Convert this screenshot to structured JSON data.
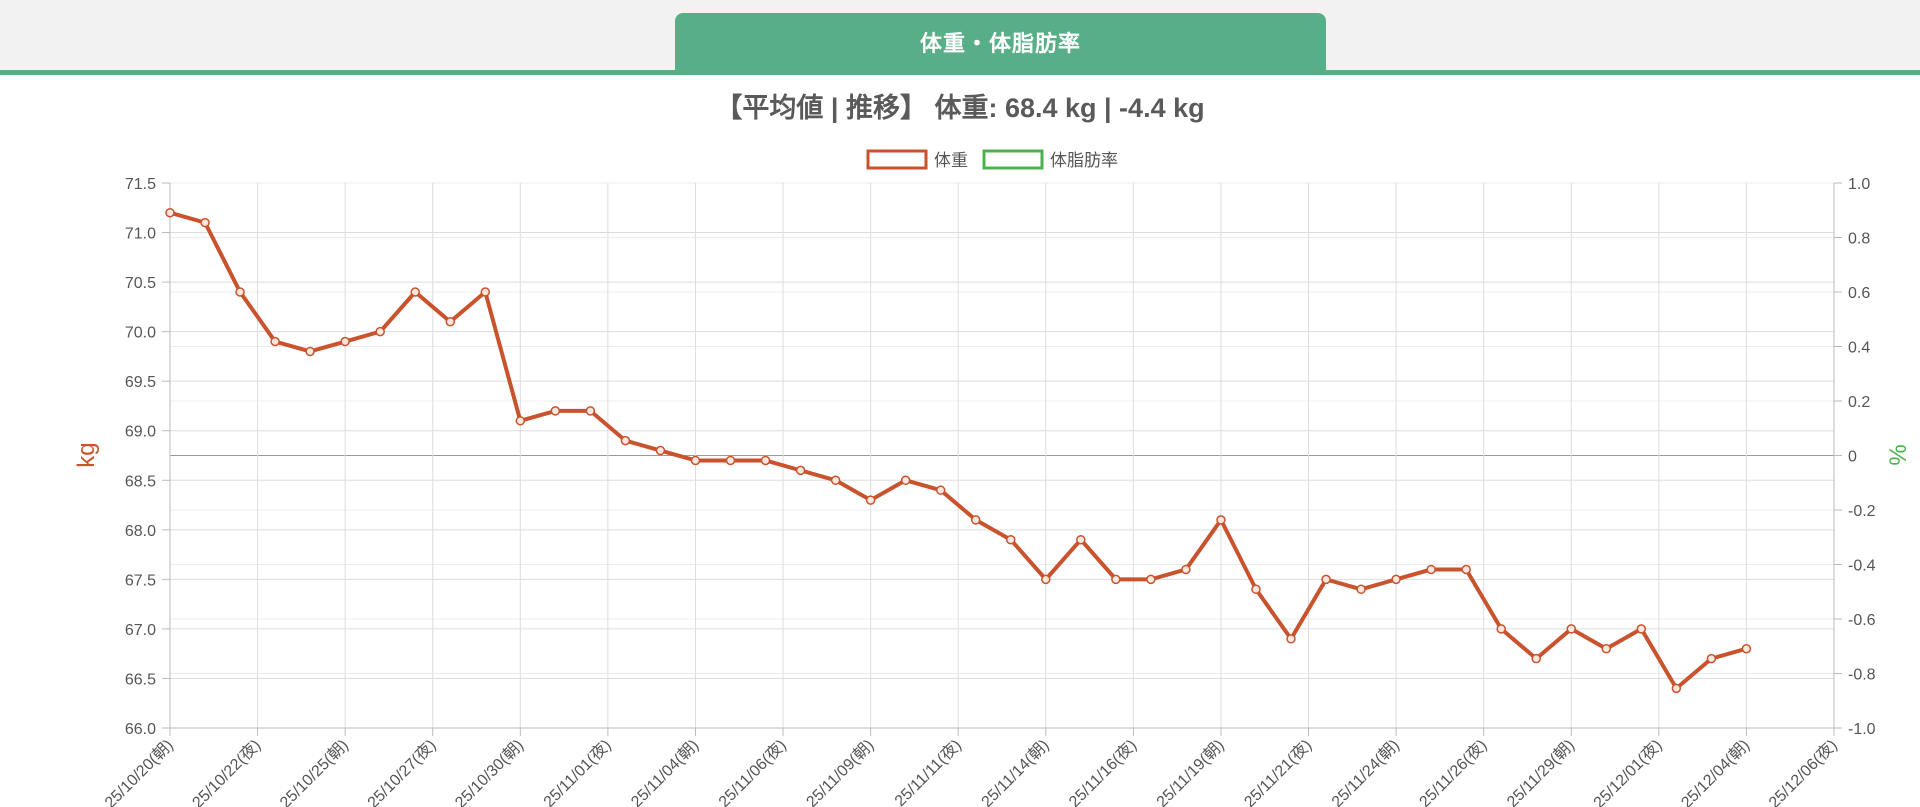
{
  "tab": {
    "label": "体重・体脂肪率"
  },
  "headline": "【平均値 | 推移】 体重: 68.4 kg | -4.4 kg",
  "colors": {
    "accent": "#58ae86",
    "weight": "#c9532d",
    "body_fat": "#4cb34c"
  },
  "chart_data": {
    "type": "line",
    "title": "",
    "legend": {
      "placement": "top-center",
      "entries": [
        "体重",
        "体脂肪率"
      ]
    },
    "grid": true,
    "y_left": {
      "label": "kg",
      "range": [
        66.0,
        71.5
      ],
      "ticks": [
        "71.5",
        "71.0",
        "70.5",
        "70.0",
        "69.5",
        "69.0",
        "68.5",
        "68.0",
        "67.5",
        "67.0",
        "66.5",
        "66.0"
      ]
    },
    "y_right": {
      "label": "%",
      "range": [
        -1.0,
        1.0
      ],
      "ticks": [
        "1.0",
        "0.8",
        "0.6",
        "0.4",
        "0.2",
        "0",
        "-0.2",
        "-0.4",
        "-0.6",
        "-0.8",
        "-1.0"
      ]
    },
    "x_tick_labels": [
      "25/10/20(朝)",
      "25/10/22(夜)",
      "25/10/25(朝)",
      "25/10/27(夜)",
      "25/10/30(朝)",
      "25/11/01(夜)",
      "25/11/04(朝)",
      "25/11/06(夜)",
      "25/11/09(朝)",
      "25/11/11(夜)",
      "25/11/14(朝)",
      "25/11/16(夜)",
      "25/11/19(朝)",
      "25/11/21(夜)",
      "25/11/24(朝)",
      "25/11/26(夜)",
      "25/11/29(朝)",
      "25/12/01(夜)",
      "25/12/04(朝)",
      "25/12/06(夜)"
    ],
    "series": [
      {
        "name": "体重",
        "axis": "y_left",
        "values": [
          71.2,
          71.1,
          70.4,
          69.9,
          69.8,
          69.9,
          70.0,
          70.4,
          70.1,
          70.4,
          69.1,
          69.2,
          69.2,
          68.9,
          68.8,
          68.7,
          68.7,
          68.7,
          68.6,
          68.5,
          68.3,
          68.5,
          68.4,
          68.1,
          67.9,
          67.5,
          67.9,
          67.5,
          67.5,
          67.6,
          68.1,
          67.4,
          66.9,
          67.5,
          67.4,
          67.5,
          67.6,
          67.6,
          67.0,
          66.7,
          67.0,
          66.8,
          67.0,
          66.4,
          66.7,
          66.8
        ]
      },
      {
        "name": "体脂肪率",
        "axis": "y_right",
        "values": []
      }
    ]
  }
}
